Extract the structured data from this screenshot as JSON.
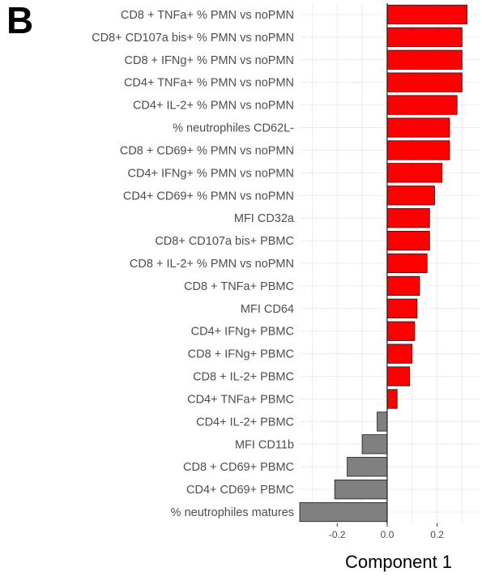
{
  "panel_label": "B",
  "chart_data": {
    "type": "bar",
    "orientation": "horizontal",
    "xlabel": "Component 1",
    "ylabel": "",
    "xlim": [
      -0.35,
      0.37
    ],
    "xticks": [
      -0.2,
      0.0,
      0.2
    ],
    "xtick_labels": [
      "-0.2",
      "0.0",
      "0.2"
    ],
    "grid": true,
    "colors": {
      "positive": "#ff0000",
      "negative": "#808080",
      "outline": "#1a1a1a",
      "grid": "#ebebeb"
    },
    "categories": [
      "CD8 + TNFa+ % PMN vs noPMN",
      "CD8+ CD107a bis+ % PMN vs noPMN",
      "CD8 + IFNg+ % PMN vs noPMN",
      "CD4+ TNFa+ % PMN vs noPMN",
      "CD4+ IL-2+ % PMN vs noPMN",
      "% neutrophiles CD62L-",
      "CD8 + CD69+ % PMN vs noPMN",
      "CD4+ IFNg+ % PMN vs noPMN",
      "CD4+ CD69+ % PMN vs noPMN",
      "MFI CD32a",
      "CD8+ CD107a bis+ PBMC",
      "CD8 + IL-2+ % PMN vs noPMN",
      "CD8 + TNFa+ PBMC",
      "MFI CD64",
      "CD4+ IFNg+ PBMC",
      "CD8 + IFNg+ PBMC",
      "CD8 + IL-2+ PBMC",
      "CD4+ TNFa+ PBMC",
      "CD4+ IL-2+ PBMC",
      "MFI CD11b",
      "CD8 + CD69+ PBMC",
      "CD4+ CD69+ PBMC",
      "% neutrophiles matures"
    ],
    "values": [
      0.32,
      0.3,
      0.3,
      0.3,
      0.28,
      0.25,
      0.25,
      0.22,
      0.19,
      0.17,
      0.17,
      0.16,
      0.13,
      0.12,
      0.11,
      0.1,
      0.09,
      0.04,
      -0.04,
      -0.1,
      -0.16,
      -0.21,
      -0.35
    ]
  }
}
